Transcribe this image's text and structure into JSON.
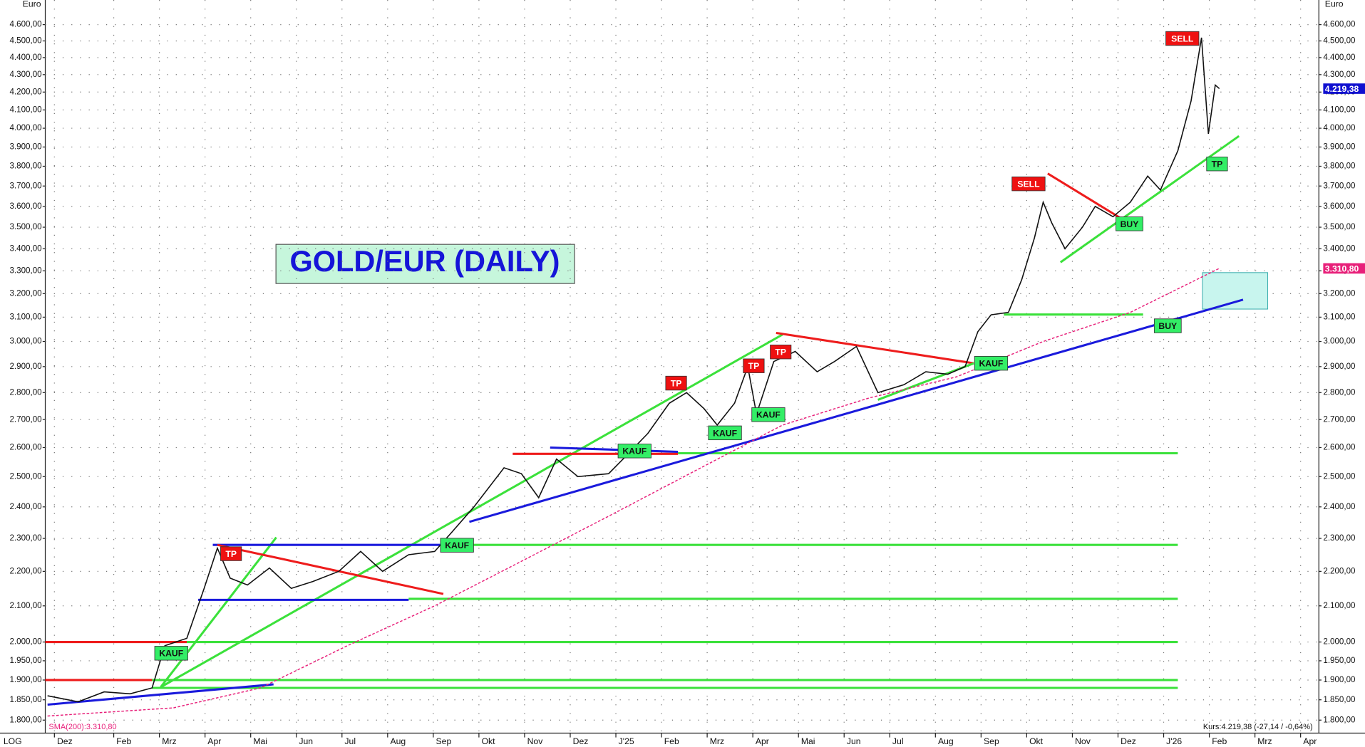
{
  "chart_data": {
    "type": "line",
    "title": "GOLD/EUR (DAILY)",
    "y_unit": "Euro",
    "scale_label": "LOG",
    "log_scale": true,
    "grid": true,
    "xlim": [
      0.5,
      28.4
    ],
    "ylim": [
      1775,
      4700
    ],
    "xticks": [
      {
        "value": 0.7,
        "label": "Dez"
      },
      {
        "value": 2,
        "label": "Feb"
      },
      {
        "value": 3,
        "label": "Mrz"
      },
      {
        "value": 4,
        "label": "Apr"
      },
      {
        "value": 5,
        "label": "Mai"
      },
      {
        "value": 6,
        "label": "Jun"
      },
      {
        "value": 7,
        "label": "Jul"
      },
      {
        "value": 8,
        "label": "Aug"
      },
      {
        "value": 9,
        "label": "Sep"
      },
      {
        "value": 10,
        "label": "Okt"
      },
      {
        "value": 11,
        "label": "Nov"
      },
      {
        "value": 12,
        "label": "Dez"
      },
      {
        "value": 13,
        "label": "J'25"
      },
      {
        "value": 14,
        "label": "Feb"
      },
      {
        "value": 15,
        "label": "Mrz"
      },
      {
        "value": 16,
        "label": "Apr"
      },
      {
        "value": 17,
        "label": "Mai"
      },
      {
        "value": 18,
        "label": "Jun"
      },
      {
        "value": 19,
        "label": "Jul"
      },
      {
        "value": 20,
        "label": "Aug"
      },
      {
        "value": 21,
        "label": "Sep"
      },
      {
        "value": 22,
        "label": "Okt"
      },
      {
        "value": 23,
        "label": "Nov"
      },
      {
        "value": 24,
        "label": "Dez"
      },
      {
        "value": 25,
        "label": "J'26"
      },
      {
        "value": 26,
        "label": "Feb"
      },
      {
        "value": 27,
        "label": "Mrz"
      },
      {
        "value": 28,
        "label": "Apr"
      }
    ],
    "yticks": [
      {
        "value": 1800,
        "label": "1.800,00"
      },
      {
        "value": 1850,
        "label": "1.850,00"
      },
      {
        "value": 1900,
        "label": "1.900,00"
      },
      {
        "value": 1950,
        "label": "1.950,00"
      },
      {
        "value": 2000,
        "label": "2.000,00"
      },
      {
        "value": 2100,
        "label": "2.100,00"
      },
      {
        "value": 2200,
        "label": "2.200,00"
      },
      {
        "value": 2300,
        "label": "2.300,00"
      },
      {
        "value": 2400,
        "label": "2.400,00"
      },
      {
        "value": 2500,
        "label": "2.500,00"
      },
      {
        "value": 2600,
        "label": "2.600,00"
      },
      {
        "value": 2700,
        "label": "2.700,00"
      },
      {
        "value": 2800,
        "label": "2.800,00"
      },
      {
        "value": 2900,
        "label": "2.900,00"
      },
      {
        "value": 3000,
        "label": "3.000,00"
      },
      {
        "value": 3100,
        "label": "3.100,00"
      },
      {
        "value": 3200,
        "label": "3.200,00"
      },
      {
        "value": 3300,
        "label": "3.300,00"
      },
      {
        "value": 3400,
        "label": "3.400,00"
      },
      {
        "value": 3500,
        "label": "3.500,00"
      },
      {
        "value": 3600,
        "label": "3.600,00"
      },
      {
        "value": 3700,
        "label": "3.700,00"
      },
      {
        "value": 3800,
        "label": "3.800,00"
      },
      {
        "value": 3900,
        "label": "3.900,00"
      },
      {
        "value": 4000,
        "label": "4.000,00"
      },
      {
        "value": 4100,
        "label": "4.100,00"
      },
      {
        "value": 4200,
        "label": "4.200,00"
      },
      {
        "value": 4300,
        "label": "4.300,00"
      },
      {
        "value": 4400,
        "label": "4.400,00"
      },
      {
        "value": 4500,
        "label": "4.500,00"
      },
      {
        "value": 4600,
        "label": "4.600,00"
      }
    ],
    "series": [
      {
        "color": "#111111",
        "x": [
          0.55,
          1.22,
          1.79,
          2.36,
          2.84,
          3.12,
          3.6,
          3.98,
          4.27,
          4.55,
          4.93,
          5.41,
          5.89,
          6.36,
          6.93,
          7.41,
          7.89,
          8.46,
          9.03,
          9.41,
          9.89,
          10.55,
          10.93,
          11.31,
          11.7,
          12.17,
          12.84,
          13.22,
          13.7,
          14.17,
          14.55,
          14.93,
          15.22,
          15.6,
          15.89,
          16.08,
          16.46,
          16.93,
          17.41,
          17.79,
          18.27,
          18.74,
          19.31,
          19.79,
          20.27,
          20.65,
          20.93,
          21.22,
          21.6,
          21.89,
          22.17,
          22.36,
          22.55,
          22.84,
          23.22,
          23.5,
          23.89,
          24.27,
          24.65,
          24.93,
          25.31,
          25.6,
          25.83,
          25.98,
          26.13,
          26.22
        ],
        "values": [
          1860,
          1845,
          1870,
          1865,
          1880,
          1990,
          2010,
          2150,
          2270,
          2180,
          2160,
          2210,
          2150,
          2170,
          2200,
          2260,
          2200,
          2250,
          2260,
          2320,
          2400,
          2530,
          2510,
          2430,
          2560,
          2500,
          2510,
          2570,
          2650,
          2760,
          2800,
          2740,
          2680,
          2760,
          2900,
          2720,
          2920,
          2960,
          2880,
          2920,
          2980,
          2800,
          2830,
          2880,
          2870,
          2900,
          3040,
          3110,
          3120,
          3260,
          3450,
          3620,
          3520,
          3400,
          3500,
          3600,
          3550,
          3620,
          3750,
          3680,
          3880,
          4150,
          4520,
          3970,
          4240,
          4219.38
        ]
      },
      {
        "name": "SMA(200):3.310,80",
        "color": "#e8207a",
        "dashed": true,
        "x": [
          0.55,
          3.31,
          5.22,
          7.12,
          9.03,
          10.93,
          12.84,
          14.74,
          16.65,
          18.55,
          20.46,
          22.36,
          24.27,
          26.22
        ],
        "values": [
          1810,
          1830,
          1880,
          1990,
          2100,
          2230,
          2370,
          2520,
          2680,
          2780,
          2860,
          3000,
          3120,
          3310.8
        ]
      }
    ],
    "lines": [
      {
        "x": [
          0.5,
          3.6
        ],
        "y": [
          2000,
          2000
        ],
        "color": "#ee1c1c"
      },
      {
        "x": [
          0.5,
          2.84
        ],
        "y": [
          1900,
          1900
        ],
        "color": "#ee1c1c"
      },
      {
        "x": [
          2.84,
          25.31
        ],
        "y": [
          1880,
          1880
        ],
        "color": "#3be13b"
      },
      {
        "x": [
          2.84,
          25.31
        ],
        "y": [
          1900,
          1900
        ],
        "color": "#3be13b"
      },
      {
        "x": [
          3.6,
          25.31
        ],
        "y": [
          2000,
          2000
        ],
        "color": "#3be13b"
      },
      {
        "x": [
          8.46,
          25.31
        ],
        "y": [
          2120,
          2120
        ],
        "color": "#3be13b"
      },
      {
        "x": [
          9.22,
          25.31
        ],
        "y": [
          2280,
          2280
        ],
        "color": "#3be13b"
      },
      {
        "x": [
          14.36,
          25.31
        ],
        "y": [
          2580,
          2580
        ],
        "color": "#3be13b"
      },
      {
        "x": [
          0.55,
          5.5
        ],
        "y": [
          1838,
          1889
        ],
        "color": "#1a1adc"
      },
      {
        "x": [
          3.03,
          16.65
        ],
        "y": [
          1882,
          3028
        ],
        "color": "#3be13b"
      },
      {
        "x": [
          3.03,
          5.56
        ],
        "y": [
          1882,
          2303
        ],
        "color": "#3be13b"
      },
      {
        "x": [
          4.17,
          9.22
        ],
        "y": [
          2280,
          2280
        ],
        "color": "#1a1adc"
      },
      {
        "x": [
          3.85,
          8.46
        ],
        "y": [
          2117,
          2117
        ],
        "color": "#1a1adc"
      },
      {
        "x": [
          4.27,
          9.22
        ],
        "y": [
          2280,
          2134
        ],
        "color": "#ee1c1c"
      },
      {
        "x": [
          9.79,
          26.74
        ],
        "y": [
          2352,
          3174
        ],
        "color": "#1a1adc"
      },
      {
        "x": [
          10.74,
          14.36
        ],
        "y": [
          2578,
          2578
        ],
        "color": "#ee1c1c"
      },
      {
        "x": [
          11.56,
          14.36
        ],
        "y": [
          2600,
          2585
        ],
        "color": "#1a1adc"
      },
      {
        "x": [
          16.51,
          20.84
        ],
        "y": [
          3035,
          2913
        ],
        "color": "#ee1c1c"
      },
      {
        "x": [
          18.74,
          20.84
        ],
        "y": [
          2773,
          2913
        ],
        "color": "#3be13b"
      },
      {
        "x": [
          22.46,
          24.08
        ],
        "y": [
          3763,
          3540
        ],
        "color": "#ee1c1c"
      },
      {
        "x": [
          22.74,
          26.65
        ],
        "y": [
          3338,
          3958
        ],
        "color": "#3be13b"
      },
      {
        "x": [
          21.5,
          24.55
        ],
        "y": [
          3111,
          3111
        ],
        "color": "#3be13b"
      }
    ],
    "zone": {
      "x": [
        25.85,
        27.28
      ],
      "y": [
        3134,
        3292
      ],
      "color": "#c8f5ee"
    },
    "annotations": [
      {
        "label": "KAUF",
        "x": 3.26,
        "y": 1970,
        "color": "#33ee66"
      },
      {
        "label": "TP",
        "x": 4.57,
        "y": 2253,
        "color": "#ee1111"
      },
      {
        "label": "KAUF",
        "x": 9.52,
        "y": 2279,
        "color": "#33ee66"
      },
      {
        "label": "KAUF",
        "x": 13.41,
        "y": 2588,
        "color": "#33ee66"
      },
      {
        "label": "TP",
        "x": 14.32,
        "y": 2836,
        "color": "#ee1111"
      },
      {
        "label": "KAUF",
        "x": 15.39,
        "y": 2652,
        "color": "#33ee66"
      },
      {
        "label": "TP",
        "x": 16.02,
        "y": 2903,
        "color": "#ee1111"
      },
      {
        "label": "KAUF",
        "x": 16.34,
        "y": 2718,
        "color": "#33ee66"
      },
      {
        "label": "TP",
        "x": 16.61,
        "y": 2958,
        "color": "#ee1111"
      },
      {
        "label": "KAUF",
        "x": 21.22,
        "y": 2913,
        "color": "#33ee66"
      },
      {
        "label": "SELL",
        "x": 22.04,
        "y": 3711,
        "color": "#ee1111"
      },
      {
        "label": "BUY",
        "x": 24.25,
        "y": 3516,
        "color": "#33ee66"
      },
      {
        "label": "BUY",
        "x": 25.09,
        "y": 3064,
        "color": "#33ee66"
      },
      {
        "label": "SELL",
        "x": 25.41,
        "y": 4515,
        "color": "#ee1111"
      },
      {
        "label": "TP",
        "x": 26.17,
        "y": 3812,
        "color": "#33ee66"
      }
    ],
    "price_labels": [
      {
        "label": "4.219,38",
        "value": 4219.38,
        "color": "#1010d0"
      },
      {
        "label": "3.310,80",
        "value": 3310.8,
        "color": "#e8207a"
      }
    ],
    "footer_text": "Kurs:4.219,38 (-27,14 / -0,64%)"
  }
}
